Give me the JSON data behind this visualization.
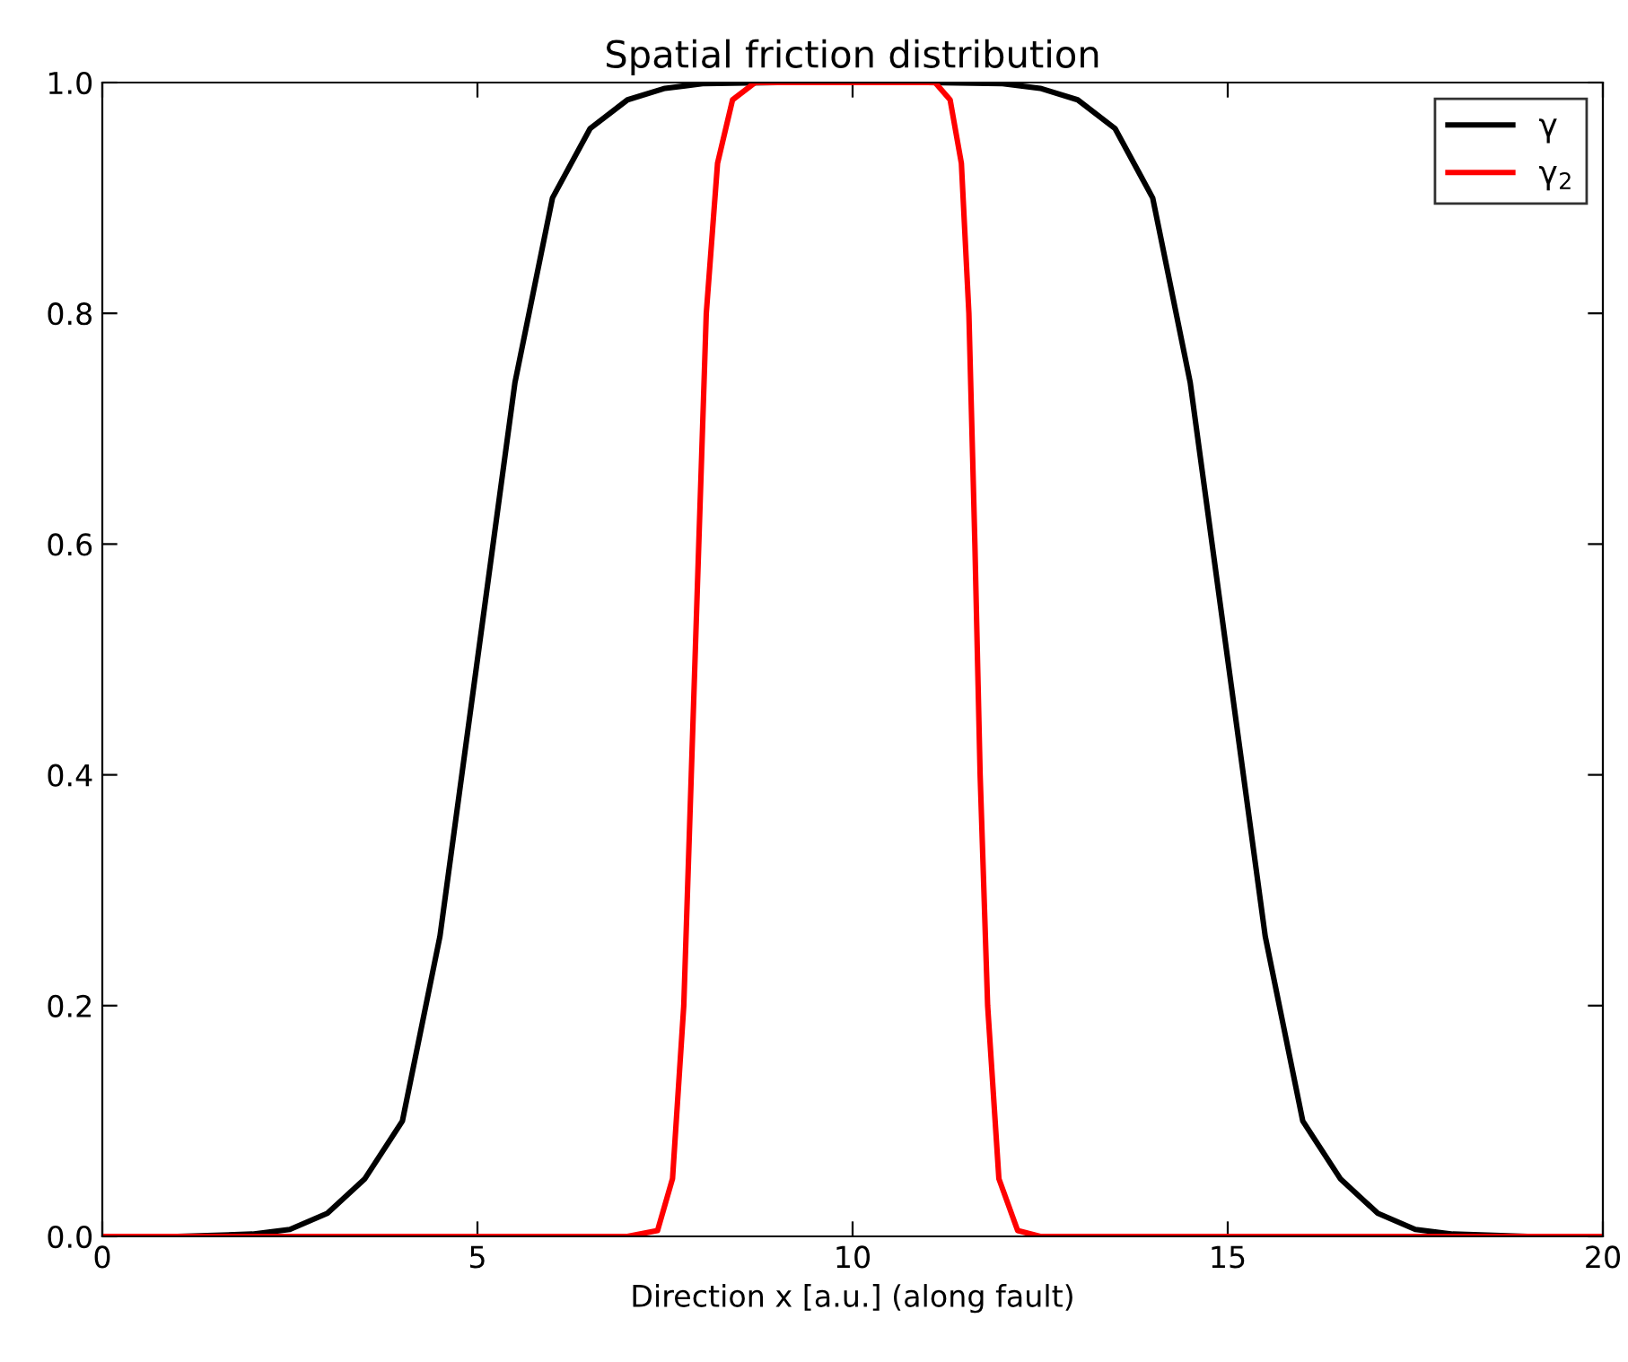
{
  "chart_data": {
    "type": "line",
    "title": "Spatial friction distribution",
    "xlabel": "Direction x [a.u.] (along fault)",
    "xlim": [
      0,
      20
    ],
    "xticks": [
      0,
      5,
      10,
      15,
      20
    ],
    "ylim": [
      0,
      1
    ],
    "yticks": [
      {
        "value": 0,
        "label": "0.0"
      },
      {
        "value": 0.2,
        "label": "0.2"
      },
      {
        "value": 0.4,
        "label": "0.4"
      },
      {
        "value": 0.6,
        "label": "0.6"
      },
      {
        "value": 0.8,
        "label": "0.8"
      },
      {
        "value": 1,
        "label": "1.0"
      }
    ],
    "grid": false,
    "legend": "top right",
    "marker": "none",
    "line_style": "solid",
    "series": [
      {
        "name": "γ",
        "color": "#000000",
        "x": [
          0,
          1,
          2,
          2.5,
          3,
          3.5,
          4,
          4.5,
          5,
          5.5,
          6,
          6.5,
          7,
          7.5,
          8,
          9,
          10,
          11,
          12,
          12.5,
          13,
          13.5,
          14,
          14.5,
          15,
          15.5,
          16,
          16.5,
          17,
          17.5,
          18,
          19,
          20
        ],
        "values": [
          0,
          0,
          0.002,
          0.006,
          0.02,
          0.05,
          0.1,
          0.26,
          0.5,
          0.74,
          0.9,
          0.96,
          0.985,
          0.995,
          0.999,
          1,
          1,
          1,
          0.999,
          0.995,
          0.985,
          0.96,
          0.9,
          0.74,
          0.5,
          0.26,
          0.1,
          0.05,
          0.02,
          0.006,
          0.002,
          0,
          0
        ]
      },
      {
        "name": "γ$_{2}$",
        "color": "#ff0000",
        "x": [
          0,
          7,
          7.4,
          7.6,
          7.75,
          7.85,
          7.95,
          8.05,
          8.2,
          8.4,
          8.7,
          11.1,
          11.3,
          11.45,
          11.55,
          11.63,
          11.7,
          11.8,
          11.95,
          12.2,
          12.5,
          20
        ],
        "values": [
          0,
          0,
          0.005,
          0.05,
          0.2,
          0.4,
          0.6,
          0.8,
          0.93,
          0.985,
          1,
          1,
          0.985,
          0.93,
          0.8,
          0.6,
          0.4,
          0.2,
          0.05,
          0.005,
          0,
          0
        ]
      }
    ]
  }
}
